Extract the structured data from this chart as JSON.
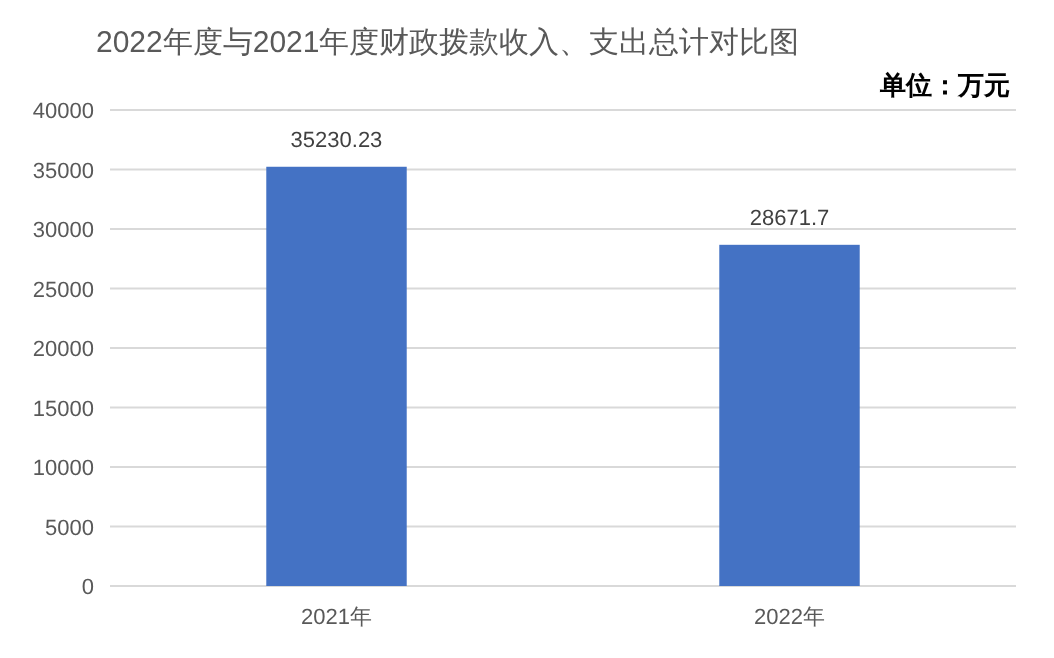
{
  "chart_data": {
    "type": "bar",
    "title": "2022年度与2021年度财政拨款收入、支出总计对比图",
    "annotations": [
      "单位：万元"
    ],
    "categories": [
      "2021年",
      "2022年"
    ],
    "series": [
      {
        "color": "#4472c4",
        "values": [
          35230.23,
          28671.7
        ]
      }
    ],
    "data_labels": true,
    "ylim": [
      0,
      40000
    ],
    "yticks": [
      0,
      5000,
      10000,
      15000,
      20000,
      25000,
      30000,
      35000,
      40000
    ],
    "grid": "y"
  }
}
